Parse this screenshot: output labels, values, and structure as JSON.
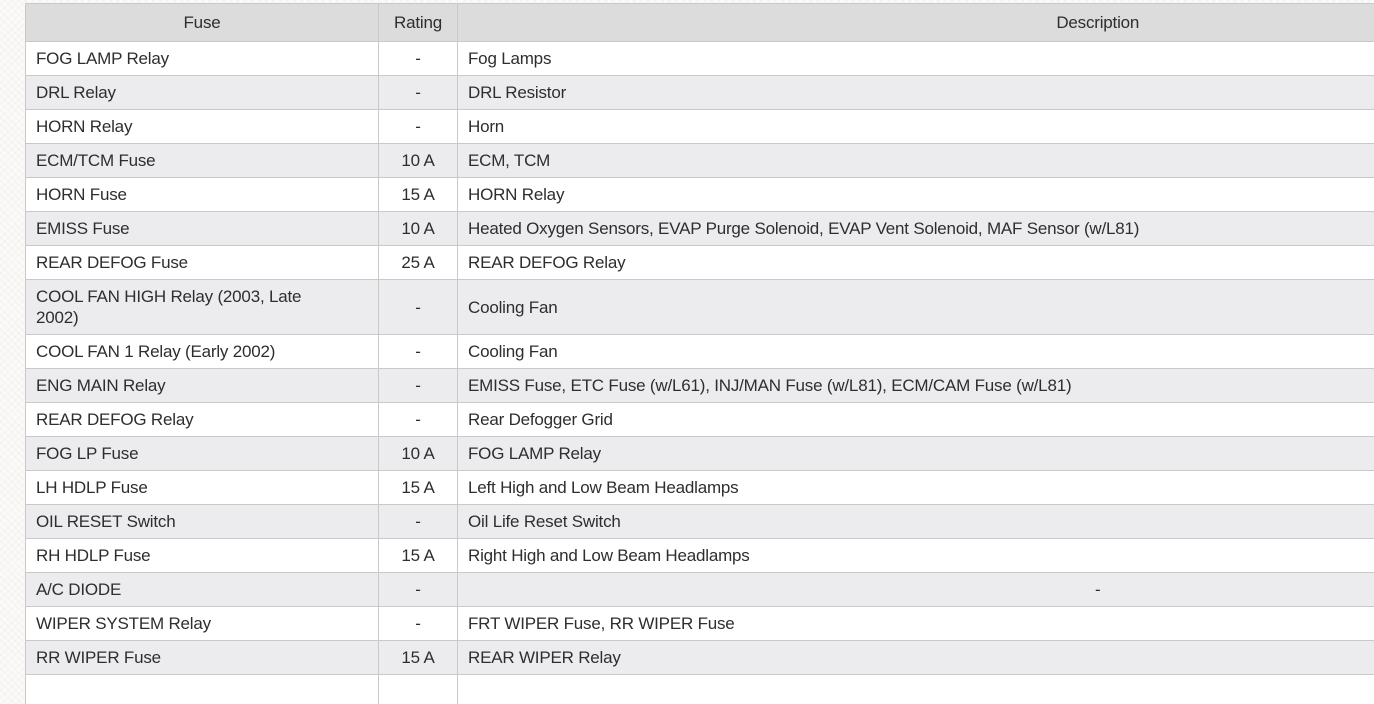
{
  "table": {
    "headers": [
      {
        "key": "fuse",
        "label": "Fuse"
      },
      {
        "key": "rating",
        "label": "Rating"
      },
      {
        "key": "description",
        "label": "Description"
      }
    ],
    "rows": [
      {
        "fuse": "FOG LAMP Relay",
        "rating": "-",
        "description": "Fog Lamps"
      },
      {
        "fuse": "DRL Relay",
        "rating": "-",
        "description": "DRL Resistor"
      },
      {
        "fuse": "HORN Relay",
        "rating": "-",
        "description": "Horn"
      },
      {
        "fuse": "ECM/TCM Fuse",
        "rating": "10 A",
        "description": "ECM, TCM"
      },
      {
        "fuse": "HORN Fuse",
        "rating": "15 A",
        "description": "HORN Relay"
      },
      {
        "fuse": "EMISS Fuse",
        "rating": "10 A",
        "description": "Heated Oxygen Sensors, EVAP Purge Solenoid, EVAP Vent Solenoid, MAF Sensor (w/L81)"
      },
      {
        "fuse": "REAR DEFOG Fuse",
        "rating": "25 A",
        "description": "REAR DEFOG Relay"
      },
      {
        "fuse": "COOL FAN HIGH Relay (2003, Late\n2002)",
        "rating": "-",
        "description": "Cooling Fan"
      },
      {
        "fuse": "COOL FAN 1 Relay (Early 2002)",
        "rating": "-",
        "description": "Cooling Fan"
      },
      {
        "fuse": "ENG MAIN Relay",
        "rating": "-",
        "description": "EMISS Fuse, ETC Fuse (w/L61), INJ/MAN Fuse (w/L81), ECM/CAM Fuse (w/L81)"
      },
      {
        "fuse": "REAR DEFOG Relay",
        "rating": "-",
        "description": "Rear Defogger Grid"
      },
      {
        "fuse": "FOG LP Fuse",
        "rating": "10 A",
        "description": "FOG LAMP Relay"
      },
      {
        "fuse": "LH HDLP Fuse",
        "rating": "15 A",
        "description": "Left High and Low Beam Headlamps"
      },
      {
        "fuse": "OIL RESET Switch",
        "rating": "-",
        "description": "Oil Life Reset Switch"
      },
      {
        "fuse": "RH HDLP Fuse",
        "rating": "15 A",
        "description": "Right High and Low Beam Headlamps"
      },
      {
        "fuse": "A/C DIODE",
        "rating": "-",
        "description": "-"
      },
      {
        "fuse": "WIPER SYSTEM Relay",
        "rating": "-",
        "description": "FRT WIPER Fuse, RR WIPER Fuse"
      },
      {
        "fuse": "RR WIPER Fuse",
        "rating": "15 A",
        "description": "REAR WIPER Relay"
      },
      {
        "fuse": "",
        "rating": "",
        "description": ""
      }
    ],
    "colors": {
      "header_bg": "#dcdcdc",
      "stripe_bg": "#ececee",
      "border": "#c9c9c9",
      "text": "#2e2e2e"
    }
  }
}
